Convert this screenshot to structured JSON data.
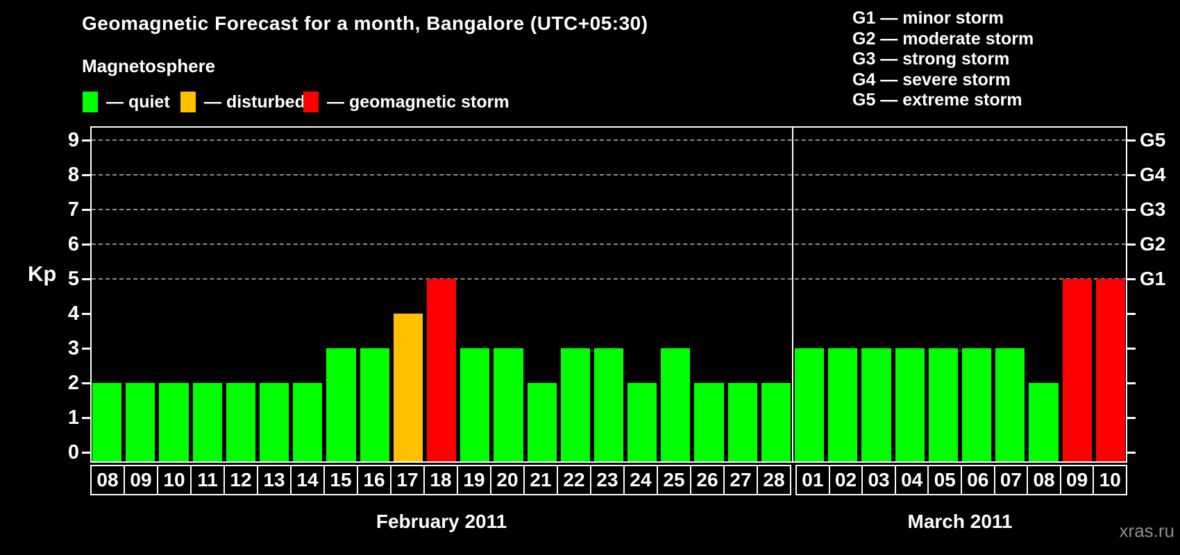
{
  "title": "Geomagnetic Forecast for a month, Bangalore (UTC+05:30)",
  "magnetosphere_legend": {
    "heading": "Magnetosphere",
    "items": [
      {
        "state": "quiet",
        "label": "— quiet"
      },
      {
        "state": "disturbed",
        "label": "— disturbed"
      },
      {
        "state": "storm",
        "label": "— geomagnetic storm"
      }
    ]
  },
  "g_scale_legend": [
    "G1 — minor storm",
    "G2 — moderate storm",
    "G3 — strong storm",
    "G4 — severe storm",
    "G5 — extreme storm"
  ],
  "colors": {
    "quiet": "#00ff00",
    "disturbed": "#ffc000",
    "storm": "#ff0000",
    "background": "#000000",
    "text": "#ffffff",
    "gridline": "#9f9f9f",
    "watermark": "#8f8f8f"
  },
  "watermark": "xras.ru",
  "chart_data": {
    "type": "bar",
    "title": "Geomagnetic Forecast for a month, Bangalore (UTC+05:30)",
    "ylabel": "Kp",
    "ylim": [
      0,
      9.4
    ],
    "yticks": [
      0,
      1,
      2,
      3,
      4,
      5,
      6,
      7,
      8,
      9
    ],
    "gridline_kp": [
      5,
      6,
      7,
      8,
      9
    ],
    "grid": "dashed horizontal at Kp 5-9 only",
    "legend_position": "top",
    "right_axis": [
      {
        "kp": 5,
        "label": "G1"
      },
      {
        "kp": 6,
        "label": "G2"
      },
      {
        "kp": 7,
        "label": "G3"
      },
      {
        "kp": 8,
        "label": "G4"
      },
      {
        "kp": 9,
        "label": "G5"
      }
    ],
    "groups": [
      {
        "label": "February 2011",
        "days": [
          "08",
          "09",
          "10",
          "11",
          "12",
          "13",
          "14",
          "15",
          "16",
          "17",
          "18",
          "19",
          "20",
          "21",
          "22",
          "23",
          "24",
          "25",
          "26",
          "27",
          "28"
        ],
        "values": [
          2,
          2,
          2,
          2,
          2,
          2,
          2,
          3,
          3,
          4,
          5,
          3,
          3,
          2,
          3,
          3,
          2,
          3,
          2,
          2,
          2
        ],
        "states": [
          "quiet",
          "quiet",
          "quiet",
          "quiet",
          "quiet",
          "quiet",
          "quiet",
          "quiet",
          "quiet",
          "disturbed",
          "storm",
          "quiet",
          "quiet",
          "quiet",
          "quiet",
          "quiet",
          "quiet",
          "quiet",
          "quiet",
          "quiet",
          "quiet"
        ]
      },
      {
        "label": "March 2011",
        "days": [
          "01",
          "02",
          "03",
          "04",
          "05",
          "06",
          "07",
          "08",
          "09",
          "10"
        ],
        "values": [
          3,
          3,
          3,
          3,
          3,
          3,
          3,
          2,
          5,
          5
        ],
        "states": [
          "quiet",
          "quiet",
          "quiet",
          "quiet",
          "quiet",
          "quiet",
          "quiet",
          "quiet",
          "storm",
          "storm"
        ]
      }
    ]
  }
}
